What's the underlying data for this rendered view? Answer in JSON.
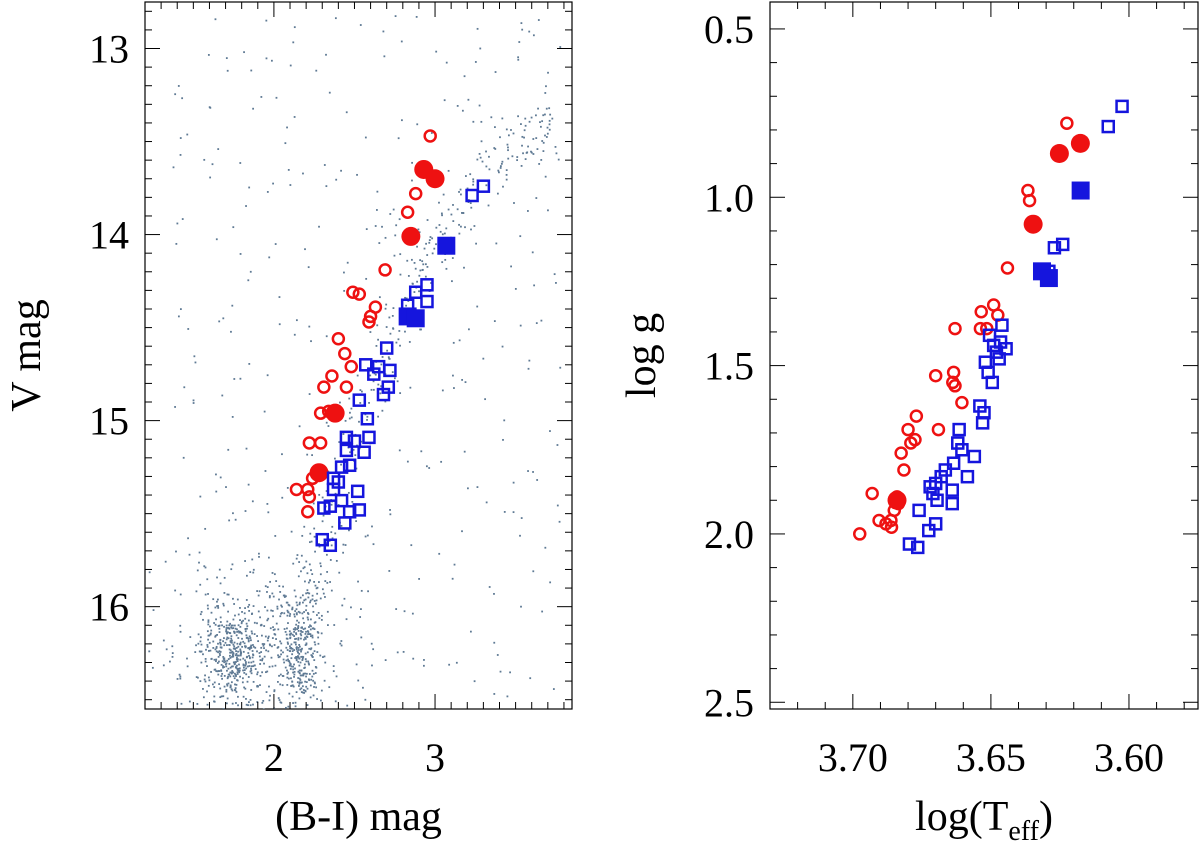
{
  "chart_data": [
    {
      "type": "scatter",
      "title": "",
      "xlabel": "(B-I) mag",
      "ylabel": "V mag",
      "xlim": [
        1.2,
        3.85
      ],
      "ylim": [
        16.55,
        12.75
      ],
      "y_inverted": true,
      "x_ticks": [
        2,
        3
      ],
      "y_ticks": [
        13,
        14,
        15,
        16
      ],
      "grid": false,
      "legend": "none",
      "colors": {
        "field": "#5f7a94",
        "red": "#ee1111",
        "blue": "#1515dd"
      },
      "field_regions": [
        {
          "x": [
            1.75,
            0.1
          ],
          "y": [
            16.25,
            0.12
          ],
          "n": 360
        },
        {
          "x": [
            2.15,
            0.07
          ],
          "y": [
            16.2,
            0.15
          ],
          "n": 260
        },
        {
          "x": [
            1.9,
            0.3
          ],
          "y": [
            16.2,
            0.3
          ],
          "n": 320
        },
        {
          "line": [
            [
              2.15,
              16.45
            ],
            [
              2.25,
              15.9
            ],
            [
              2.45,
              15.2
            ],
            [
              2.7,
              14.6
            ],
            [
              2.9,
              14.2
            ],
            [
              3.2,
              13.8
            ],
            [
              3.5,
              13.5
            ],
            [
              3.75,
              13.4
            ]
          ],
          "spread": 0.055,
          "n": 340
        },
        {
          "x": [
            1.35,
            3.8
          ],
          "y": [
            12.8,
            16.5
          ],
          "uniform": true,
          "n": 360
        }
      ],
      "series": [
        {
          "marker": "open-circle",
          "color": "#ee1111",
          "points": [
            [
              2.97,
              13.47
            ],
            [
              2.88,
              13.78
            ],
            [
              2.83,
              13.88
            ],
            [
              2.69,
              14.19
            ],
            [
              2.53,
              14.32
            ],
            [
              2.49,
              14.31
            ],
            [
              2.63,
              14.39
            ],
            [
              2.6,
              14.44
            ],
            [
              2.59,
              14.47
            ],
            [
              2.4,
              14.56
            ],
            [
              2.44,
              14.64
            ],
            [
              2.48,
              14.71
            ],
            [
              2.36,
              14.76
            ],
            [
              2.31,
              14.82
            ],
            [
              2.45,
              14.82
            ],
            [
              2.29,
              14.96
            ],
            [
              2.34,
              14.95
            ],
            [
              2.22,
              15.12
            ],
            [
              2.29,
              15.12
            ],
            [
              2.27,
              15.27
            ],
            [
              2.24,
              15.31
            ],
            [
              2.21,
              15.37
            ],
            [
              2.22,
              15.41
            ],
            [
              2.14,
              15.37
            ],
            [
              2.21,
              15.49
            ]
          ]
        },
        {
          "marker": "filled-circle",
          "color": "#ee1111",
          "points": [
            [
              2.93,
              13.65
            ],
            [
              3.0,
              13.7
            ],
            [
              2.85,
              14.01
            ],
            [
              2.38,
              14.96
            ],
            [
              2.28,
              15.28
            ]
          ]
        },
        {
          "marker": "open-square",
          "color": "#1515dd",
          "points": [
            [
              3.3,
              13.74
            ],
            [
              3.23,
              13.79
            ],
            [
              2.95,
              14.27
            ],
            [
              2.88,
              14.31
            ],
            [
              2.95,
              14.36
            ],
            [
              2.83,
              14.38
            ],
            [
              2.7,
              14.61
            ],
            [
              2.57,
              14.7
            ],
            [
              2.65,
              14.71
            ],
            [
              2.72,
              14.73
            ],
            [
              2.62,
              14.75
            ],
            [
              2.71,
              14.82
            ],
            [
              2.68,
              14.86
            ],
            [
              2.53,
              14.89
            ],
            [
              2.58,
              14.99
            ],
            [
              2.45,
              15.09
            ],
            [
              2.59,
              15.09
            ],
            [
              2.5,
              15.11
            ],
            [
              2.45,
              15.16
            ],
            [
              2.56,
              15.17
            ],
            [
              2.47,
              15.24
            ],
            [
              2.42,
              15.25
            ],
            [
              2.37,
              15.31
            ],
            [
              2.4,
              15.33
            ],
            [
              2.37,
              15.37
            ],
            [
              2.52,
              15.38
            ],
            [
              2.42,
              15.43
            ],
            [
              2.35,
              15.46
            ],
            [
              2.31,
              15.47
            ],
            [
              2.53,
              15.48
            ],
            [
              2.47,
              15.49
            ],
            [
              2.44,
              15.55
            ],
            [
              2.3,
              15.64
            ],
            [
              2.35,
              15.67
            ]
          ]
        },
        {
          "marker": "filled-square",
          "color": "#1515dd",
          "points": [
            [
              3.07,
              14.06
            ],
            [
              2.83,
              14.44
            ],
            [
              2.88,
              14.45
            ]
          ]
        }
      ]
    },
    {
      "type": "scatter",
      "title": "",
      "xlabel": "log(T",
      "xlabel_sub": "eff",
      "xlabel_tail": ")",
      "ylabel": "log g",
      "xlim": [
        3.73,
        3.575
      ],
      "ylim": [
        2.52,
        0.42
      ],
      "x_inverted": true,
      "y_inverted": true,
      "x_ticks": [
        3.7,
        3.65,
        3.6
      ],
      "x_tick_labels": [
        "3.70",
        "3.65",
        "3.60"
      ],
      "y_ticks": [
        0.5,
        1.0,
        1.5,
        2.0,
        2.5
      ],
      "y_tick_labels": [
        "0.5",
        "1.0",
        "1.5",
        "2.0",
        "2.5"
      ],
      "grid": false,
      "legend": "none",
      "series": [
        {
          "marker": "open-circle",
          "color": "#ee1111",
          "points": [
            [
              3.6225,
              0.78
            ],
            [
              3.6366,
              0.98
            ],
            [
              3.636,
              1.01
            ],
            [
              3.644,
              1.21
            ],
            [
              3.649,
              1.32
            ],
            [
              3.6535,
              1.34
            ],
            [
              3.6475,
              1.35
            ],
            [
              3.6515,
              1.39
            ],
            [
              3.6538,
              1.39
            ],
            [
              3.663,
              1.39
            ],
            [
              3.6635,
              1.52
            ],
            [
              3.6638,
              1.55
            ],
            [
              3.67,
              1.53
            ],
            [
              3.663,
              1.56
            ],
            [
              3.6605,
              1.61
            ],
            [
              3.677,
              1.65
            ],
            [
              3.669,
              1.69
            ],
            [
              3.68,
              1.69
            ],
            [
              3.6775,
              1.72
            ],
            [
              3.679,
              1.73
            ],
            [
              3.6825,
              1.76
            ],
            [
              3.6815,
              1.81
            ],
            [
              3.684,
              1.89
            ],
            [
              3.6835,
              1.91
            ],
            [
              3.693,
              1.88
            ],
            [
              3.685,
              1.93
            ],
            [
              3.6862,
              1.96
            ],
            [
              3.6905,
              1.96
            ],
            [
              3.688,
              1.97
            ],
            [
              3.686,
              1.98
            ],
            [
              3.6975,
              2.0
            ]
          ]
        },
        {
          "marker": "filled-circle",
          "color": "#ee1111",
          "points": [
            [
              3.6176,
              0.84
            ],
            [
              3.6252,
              0.87
            ],
            [
              3.6347,
              1.08
            ],
            [
              3.684,
              1.9
            ]
          ]
        },
        {
          "marker": "open-square",
          "color": "#1515dd",
          "points": [
            [
              3.6025,
              0.73
            ],
            [
              3.6075,
              0.79
            ],
            [
              3.624,
              1.14
            ],
            [
              3.627,
              1.15
            ],
            [
              3.629,
              1.22
            ],
            [
              3.646,
              1.38
            ],
            [
              3.6505,
              1.41
            ],
            [
              3.6465,
              1.43
            ],
            [
              3.649,
              1.44
            ],
            [
              3.648,
              1.46
            ],
            [
              3.6445,
              1.45
            ],
            [
              3.647,
              1.48
            ],
            [
              3.652,
              1.49
            ],
            [
              3.651,
              1.52
            ],
            [
              3.6495,
              1.55
            ],
            [
              3.654,
              1.62
            ],
            [
              3.6525,
              1.64
            ],
            [
              3.653,
              1.67
            ],
            [
              3.6615,
              1.69
            ],
            [
              3.662,
              1.73
            ],
            [
              3.6605,
              1.75
            ],
            [
              3.656,
              1.77
            ],
            [
              3.6635,
              1.79
            ],
            [
              3.6665,
              1.81
            ],
            [
              3.668,
              1.83
            ],
            [
              3.67,
              1.85
            ],
            [
              3.672,
              1.86
            ],
            [
              3.6585,
              1.83
            ],
            [
              3.664,
              1.87
            ],
            [
              3.671,
              1.88
            ],
            [
              3.6695,
              1.9
            ],
            [
              3.664,
              1.91
            ],
            [
              3.676,
              1.93
            ],
            [
              3.67,
              1.97
            ],
            [
              3.6725,
              1.99
            ],
            [
              3.6795,
              2.03
            ],
            [
              3.6765,
              2.04
            ]
          ]
        },
        {
          "marker": "filled-square",
          "color": "#1515dd",
          "points": [
            [
              3.6175,
              0.98
            ],
            [
              3.6315,
              1.22
            ],
            [
              3.629,
              1.24
            ]
          ]
        }
      ]
    }
  ]
}
